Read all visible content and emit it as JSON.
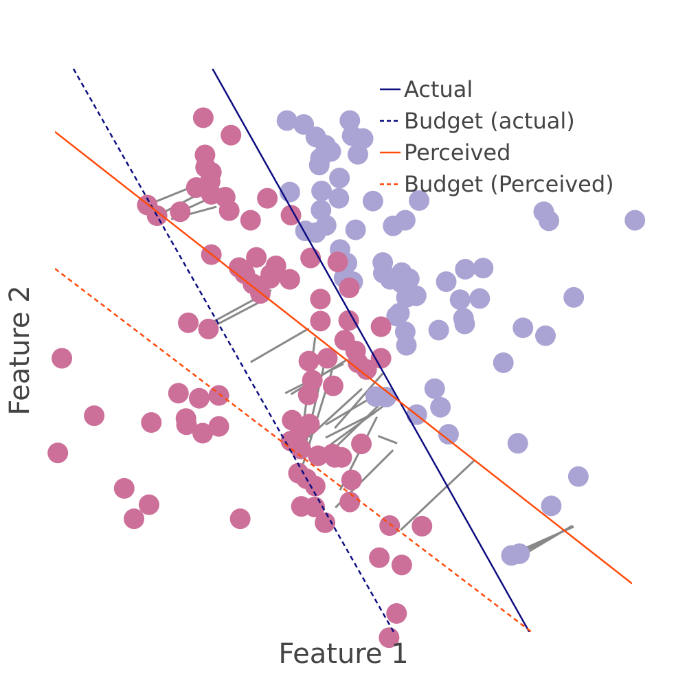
{
  "chart_data": {
    "type": "scatter",
    "xlabel": "Feature 1",
    "ylabel": "Feature 2",
    "xlim": [
      0,
      100
    ],
    "ylim": [
      0,
      100
    ],
    "grid": false,
    "legend_position": "top-right",
    "colors": {
      "class_pink": "#cc6f99",
      "class_lavender": "#aaa4d4",
      "actual": "#0d0d80",
      "perceived": "#ff4a0a",
      "connector": "#888888"
    },
    "legend": [
      {
        "label": "Actual",
        "line": "actual",
        "dash": "solid"
      },
      {
        "label": "Budget (actual)",
        "line": "actual",
        "dash": "dashed"
      },
      {
        "label": "Perceived",
        "line": "perceived",
        "dash": "solid"
      },
      {
        "label": "Budget (Perceived)",
        "line": "perceived",
        "dash": "dashed"
      }
    ],
    "lines": [
      {
        "name": "Actual",
        "color": "actual",
        "dash": "solid",
        "points": [
          [
            27.3,
            100
          ],
          [
            82.2,
            0
          ]
        ]
      },
      {
        "name": "Budget (actual)",
        "color": "actual",
        "dash": "dashed",
        "points": [
          [
            3.2,
            100
          ],
          [
            58.7,
            0
          ]
        ]
      },
      {
        "name": "Perceived",
        "color": "perceived",
        "dash": "solid",
        "points": [
          [
            0,
            88.8
          ],
          [
            100,
            8.6
          ]
        ]
      },
      {
        "name": "Budget (Perceived)",
        "color": "perceived",
        "dash": "dashed",
        "points": [
          [
            0,
            64.5
          ],
          [
            82.6,
            0
          ]
        ]
      }
    ],
    "series": [
      {
        "class": "lavender",
        "points": [
          [
            40.2,
            90.8
          ],
          [
            43.1,
            90.1
          ],
          [
            45.2,
            87.9
          ],
          [
            46.9,
            86.4
          ],
          [
            47.8,
            85.3
          ],
          [
            46.0,
            84.1
          ],
          [
            45.8,
            82.9
          ],
          [
            51.1,
            90.8
          ],
          [
            51.5,
            88.1
          ],
          [
            53.4,
            87.6
          ],
          [
            52.5,
            84.8
          ],
          [
            49.3,
            80.6
          ],
          [
            40.7,
            78.1
          ],
          [
            46.2,
            78.3
          ],
          [
            49.2,
            77.0
          ],
          [
            55.1,
            76.5
          ],
          [
            46.1,
            74.9
          ],
          [
            47.0,
            72.2
          ],
          [
            45.2,
            70.9
          ],
          [
            43.4,
            71.2
          ],
          [
            52.1,
            71.4
          ],
          [
            60.7,
            73.1
          ],
          [
            58.6,
            72.1
          ],
          [
            63.1,
            76.6
          ],
          [
            84.7,
            74.6
          ],
          [
            85.6,
            73.0
          ],
          [
            100.5,
            73.1
          ],
          [
            49.4,
            67.9
          ],
          [
            50.6,
            65.5
          ],
          [
            49.6,
            65.8
          ],
          [
            56.8,
            65.6
          ],
          [
            56.9,
            63.7
          ],
          [
            60.1,
            63.8
          ],
          [
            60.0,
            62.0
          ],
          [
            61.4,
            62.7
          ],
          [
            58.1,
            62.6
          ],
          [
            67.8,
            62.2
          ],
          [
            71.1,
            64.4
          ],
          [
            74.2,
            64.6
          ],
          [
            50.1,
            62.9
          ],
          [
            51.6,
            62.2
          ],
          [
            60.9,
            59.4
          ],
          [
            62.6,
            59.7
          ],
          [
            70.2,
            59.0
          ],
          [
            73.6,
            59.2
          ],
          [
            89.9,
            59.4
          ],
          [
            59.7,
            56.6
          ],
          [
            59.2,
            56.1
          ],
          [
            60.7,
            53.3
          ],
          [
            60.9,
            50.9
          ],
          [
            66.5,
            53.6
          ],
          [
            71.0,
            54.7
          ],
          [
            70.8,
            55.7
          ],
          [
            81.1,
            54.0
          ],
          [
            85.0,
            52.6
          ],
          [
            77.7,
            47.8
          ],
          [
            65.8,
            43.2
          ],
          [
            66.8,
            39.9
          ],
          [
            57.4,
            41.7
          ],
          [
            55.6,
            41.8
          ],
          [
            62.7,
            38.6
          ],
          [
            68.2,
            35.1
          ],
          [
            80.2,
            33.5
          ],
          [
            90.7,
            27.6
          ],
          [
            86.0,
            22.4
          ],
          [
            79.1,
            13.6
          ],
          [
            80.5,
            13.9
          ]
        ]
      },
      {
        "class": "pink",
        "points": [
          [
            25.7,
            91.3
          ],
          [
            26.0,
            84.7
          ],
          [
            26.1,
            82.5
          ],
          [
            27.1,
            81.6
          ],
          [
            26.9,
            80.0
          ],
          [
            24.5,
            78.9
          ],
          [
            30.5,
            88.2
          ],
          [
            27.1,
            77.7
          ],
          [
            29.5,
            77.2
          ],
          [
            36.8,
            77.0
          ],
          [
            40.9,
            74.0
          ],
          [
            30.2,
            74.8
          ],
          [
            33.9,
            73.1
          ],
          [
            16.0,
            75.8
          ],
          [
            17.7,
            73.9
          ],
          [
            21.7,
            74.6
          ],
          [
            27.1,
            67.0
          ],
          [
            34.9,
            66.5
          ],
          [
            37.4,
            63.5
          ],
          [
            37.3,
            62.8
          ],
          [
            34.3,
            61.8
          ],
          [
            31.9,
            64.7
          ],
          [
            32.9,
            63.6
          ],
          [
            35.6,
            60.1
          ],
          [
            38.3,
            65.0
          ],
          [
            40.7,
            62.6
          ],
          [
            44.3,
            66.4
          ],
          [
            49.0,
            65.7
          ],
          [
            51.0,
            61.1
          ],
          [
            46.0,
            59.1
          ],
          [
            46.0,
            55.2
          ],
          [
            50.9,
            55.3
          ],
          [
            56.5,
            54.2
          ],
          [
            50.2,
            51.8
          ],
          [
            52.1,
            49.9
          ],
          [
            47.2,
            48.6
          ],
          [
            52.5,
            47.8
          ],
          [
            54.0,
            46.6
          ],
          [
            56.5,
            48.6
          ],
          [
            44.0,
            48.1
          ],
          [
            44.6,
            44.7
          ],
          [
            48.2,
            43.7
          ],
          [
            43.9,
            42.1
          ],
          [
            23.1,
            54.9
          ],
          [
            26.6,
            53.8
          ],
          [
            28.4,
            42.0
          ],
          [
            28.4,
            36.5
          ],
          [
            22.7,
            37.9
          ],
          [
            25.6,
            35.3
          ],
          [
            6.8,
            38.4
          ],
          [
            16.7,
            37.2
          ],
          [
            41.1,
            37.6
          ],
          [
            42.5,
            35.7
          ],
          [
            44.1,
            36.9
          ],
          [
            40.9,
            33.9
          ],
          [
            42.6,
            32.5
          ],
          [
            45.6,
            31.3
          ],
          [
            48.1,
            31.6
          ],
          [
            48.5,
            31.0
          ],
          [
            49.7,
            31.0
          ],
          [
            53.1,
            33.4
          ],
          [
            42.2,
            28.2
          ],
          [
            43.6,
            27.2
          ],
          [
            45.1,
            25.9
          ],
          [
            42.7,
            22.3
          ],
          [
            45.0,
            22.2
          ],
          [
            51.4,
            27.0
          ],
          [
            51.1,
            23.1
          ],
          [
            12.0,
            25.5
          ],
          [
            13.7,
            20.1
          ],
          [
            16.3,
            22.6
          ],
          [
            32.1,
            20.1
          ],
          [
            46.8,
            19.4
          ],
          [
            58.0,
            18.9
          ],
          [
            63.6,
            18.8
          ],
          [
            56.2,
            13.2
          ],
          [
            60.1,
            11.9
          ],
          [
            59.2,
            3.3
          ],
          [
            57.9,
            -1.0
          ],
          [
            1.2,
            48.6
          ],
          [
            0.5,
            31.8
          ],
          [
            21.4,
            42.4
          ],
          [
            25.0,
            41.5
          ],
          [
            22.8,
            36.8
          ]
        ]
      }
    ],
    "connectors": [
      [
        [
          16.0,
          75.8
        ],
        [
          26.1,
          80.0
        ]
      ],
      [
        [
          17.7,
          73.9
        ],
        [
          27.1,
          78.9
        ]
      ],
      [
        [
          21.7,
          74.6
        ],
        [
          28.5,
          77.8
        ]
      ],
      [
        [
          20.1,
          73.3
        ],
        [
          28.0,
          75.5
        ]
      ],
      [
        [
          24.5,
          78.9
        ],
        [
          28.6,
          79.7
        ]
      ],
      [
        [
          27.1,
          54.9
        ],
        [
          37.5,
          60.7
        ]
      ],
      [
        [
          26.6,
          53.8
        ],
        [
          37.2,
          59.5
        ]
      ],
      [
        [
          33.9,
          47.9
        ],
        [
          44.0,
          53.9
        ]
      ],
      [
        [
          39.9,
          42.4
        ],
        [
          50.0,
          47.6
        ]
      ],
      [
        [
          40.9,
          42.2
        ],
        [
          50.7,
          48.4
        ]
      ],
      [
        [
          42.3,
          31.3
        ],
        [
          45.1,
          52.3
        ]
      ],
      [
        [
          43.4,
          33.1
        ],
        [
          47.0,
          49.0
        ]
      ],
      [
        [
          42.2,
          27.2
        ],
        [
          48.0,
          46.4
        ]
      ],
      [
        [
          44.0,
          34.6
        ],
        [
          53.2,
          43.2
        ]
      ],
      [
        [
          48.5,
          36.2
        ],
        [
          56.8,
          45.9
        ]
      ],
      [
        [
          46.9,
          36.8
        ],
        [
          56.3,
          42.5
        ]
      ],
      [
        [
          47.4,
          33.0
        ],
        [
          57.0,
          40.2
        ]
      ],
      [
        [
          46.9,
          34.5
        ],
        [
          55.4,
          38.9
        ]
      ],
      [
        [
          48.0,
          32.2
        ],
        [
          57.4,
          41.5
        ]
      ],
      [
        [
          49.4,
          25.2
        ],
        [
          55.8,
          38.2
        ]
      ],
      [
        [
          48.6,
          22.1
        ],
        [
          58.6,
          32.3
        ]
      ],
      [
        [
          56.0,
          34.8
        ],
        [
          59.3,
          33.5
        ]
      ],
      [
        [
          59.9,
          18.1
        ],
        [
          72.6,
          30.4
        ]
      ],
      [
        [
          80.2,
          14.3
        ],
        [
          89.9,
          18.7
        ]
      ],
      [
        [
          80.5,
          13.9
        ],
        [
          89.7,
          18.8
        ]
      ],
      [
        [
          80.8,
          13.5
        ],
        [
          89.7,
          18.9
        ]
      ]
    ]
  }
}
